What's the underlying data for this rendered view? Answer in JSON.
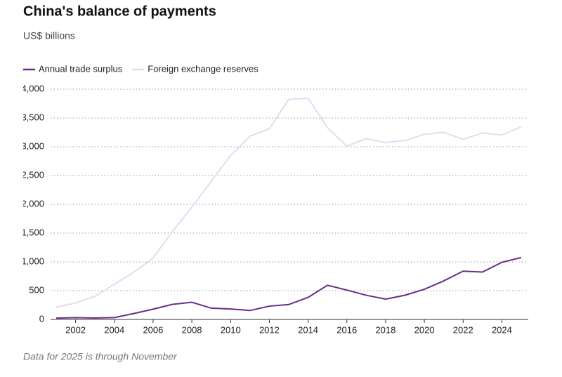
{
  "chart_data": {
    "type": "line",
    "title": "China's balance of payments",
    "subtitle": "US$ billions",
    "note": "Data for 2025 is through November",
    "x": [
      2001,
      2002,
      2003,
      2004,
      2005,
      2006,
      2007,
      2008,
      2009,
      2010,
      2011,
      2012,
      2013,
      2014,
      2015,
      2016,
      2017,
      2018,
      2019,
      2020,
      2021,
      2022,
      2023,
      2024,
      2025
    ],
    "series": [
      {
        "name": "Annual trade surplus",
        "color": "#6a2c86",
        "values": [
          23,
          30,
          25,
          32,
          102,
          178,
          262,
          298,
          196,
          182,
          155,
          231,
          259,
          383,
          594,
          510,
          420,
          352,
          421,
          524,
          670,
          838,
          823,
          992,
          1076
        ]
      },
      {
        "name": "Foreign exchange reserves",
        "color": "#ead8f0",
        "values": [
          212,
          286,
          403,
          610,
          819,
          1066,
          1528,
          1946,
          2399,
          2847,
          3181,
          3312,
          3821,
          3843,
          3330,
          3011,
          3140,
          3073,
          3108,
          3217,
          3250,
          3128,
          3238,
          3204,
          3346
        ]
      }
    ],
    "xlim": [
      2001,
      2025
    ],
    "xticks": [
      2002,
      2004,
      2006,
      2008,
      2010,
      2012,
      2014,
      2016,
      2018,
      2020,
      2022,
      2024
    ],
    "ylim": [
      0,
      4000
    ],
    "yticks": [
      0,
      500,
      {
        "value": 1000,
        "label": "1,000"
      },
      {
        "value": 1500,
        "label": "1,500"
      },
      {
        "value": 2000,
        "label": "2,000"
      },
      {
        "value": 2500,
        "label": "2,500"
      },
      {
        "value": 3000,
        "label": "3,000"
      },
      {
        "value": 3500,
        "label": "3,500"
      },
      {
        "value": 4000,
        "label": "4,000"
      }
    ],
    "grid": true,
    "legend": "top"
  }
}
